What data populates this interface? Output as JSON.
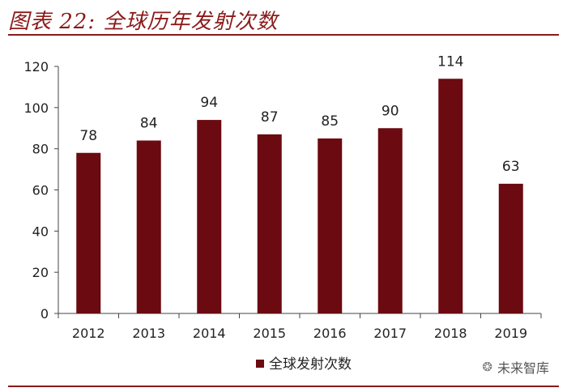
{
  "title": "图表 22: 全球历年发射次数",
  "watermark": "未来智库",
  "colors": {
    "accent": "#8b1a1a",
    "bar": "#6b0a10"
  },
  "chart_data": {
    "type": "bar",
    "categories": [
      "2012",
      "2013",
      "2014",
      "2015",
      "2016",
      "2017",
      "2018",
      "2019"
    ],
    "series": [
      {
        "name": "全球发射次数",
        "values": [
          78,
          84,
          94,
          87,
          85,
          90,
          114,
          63
        ]
      }
    ],
    "ylim": [
      0,
      120
    ],
    "yticks": [
      0,
      20,
      40,
      60,
      80,
      100,
      120
    ],
    "grid": false,
    "legend": "bottom-center",
    "data_labels": true
  }
}
